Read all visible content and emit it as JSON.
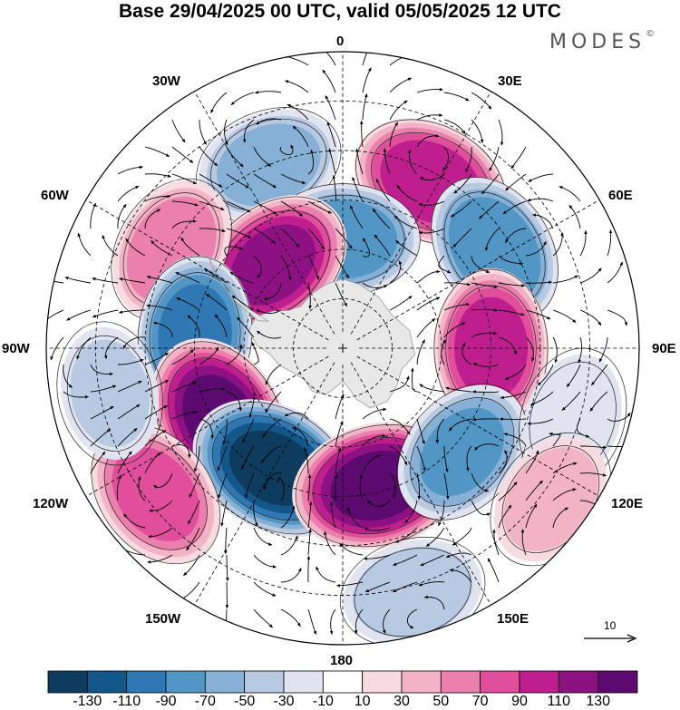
{
  "title": "Base 29/04/2025 00 UTC, valid 05/05/2025 12 UTC",
  "brand": {
    "name": "MODES",
    "mark": "©"
  },
  "longitude_labels": {
    "top": "0",
    "bottom": "180",
    "upper_left": "30W",
    "upper_right": "30E",
    "mid_upper_left": "60W",
    "mid_upper_right": "60E",
    "left": "90W",
    "right": "90E",
    "mid_lower_left": "120W",
    "mid_lower_right": "120E",
    "lower_left": "150W",
    "lower_right": "150E"
  },
  "reference_vector": {
    "label": "10"
  },
  "colorbar": {
    "ticks": [
      "-130",
      "-110",
      "-90",
      "-70",
      "-50",
      "-30",
      "-10",
      "10",
      "30",
      "50",
      "70",
      "90",
      "110",
      "130"
    ],
    "colors": [
      "#0d3c5f",
      "#12568a",
      "#2f78b4",
      "#5196c5",
      "#86b0d6",
      "#b8c9e2",
      "#e1e4f0",
      "#ffffff",
      "#f8dbe0",
      "#f3b3c6",
      "#ec80ad",
      "#e04e9c",
      "#bf1f8e",
      "#8e1184",
      "#5c0a70"
    ]
  },
  "map": {
    "projection": "south polar stereographic",
    "land_color": "#e8e8e8",
    "field": "anomaly",
    "anomaly_centers_deg": [
      {
        "lon": -22,
        "colat": 60,
        "value": -55
      },
      {
        "lon": 28,
        "colat": 57,
        "value": 100
      },
      {
        "lon": 0,
        "colat": 33,
        "value": -80
      },
      {
        "lon": -40,
        "colat": 33,
        "value": 110
      },
      {
        "lon": -60,
        "colat": 60,
        "value": 60
      },
      {
        "lon": 57,
        "colat": 55,
        "value": -85
      },
      {
        "lon": 90,
        "colat": 45,
        "value": 95
      },
      {
        "lon": -85,
        "colat": 45,
        "value": -95
      },
      {
        "lon": -120,
        "colat": 43,
        "value": 130
      },
      {
        "lon": -150,
        "colat": 42,
        "value": -130
      },
      {
        "lon": 166,
        "colat": 43,
        "value": 130
      },
      {
        "lon": 131,
        "colat": 48,
        "value": -70
      },
      {
        "lon": -128,
        "colat": 72,
        "value": 75
      },
      {
        "lon": 107,
        "colat": 73,
        "value": -25
      },
      {
        "lon": 126,
        "colat": 78,
        "value": 35
      },
      {
        "lon": 164,
        "colat": 77,
        "value": -45
      },
      {
        "lon": -101,
        "colat": 72,
        "value": -30
      }
    ]
  }
}
